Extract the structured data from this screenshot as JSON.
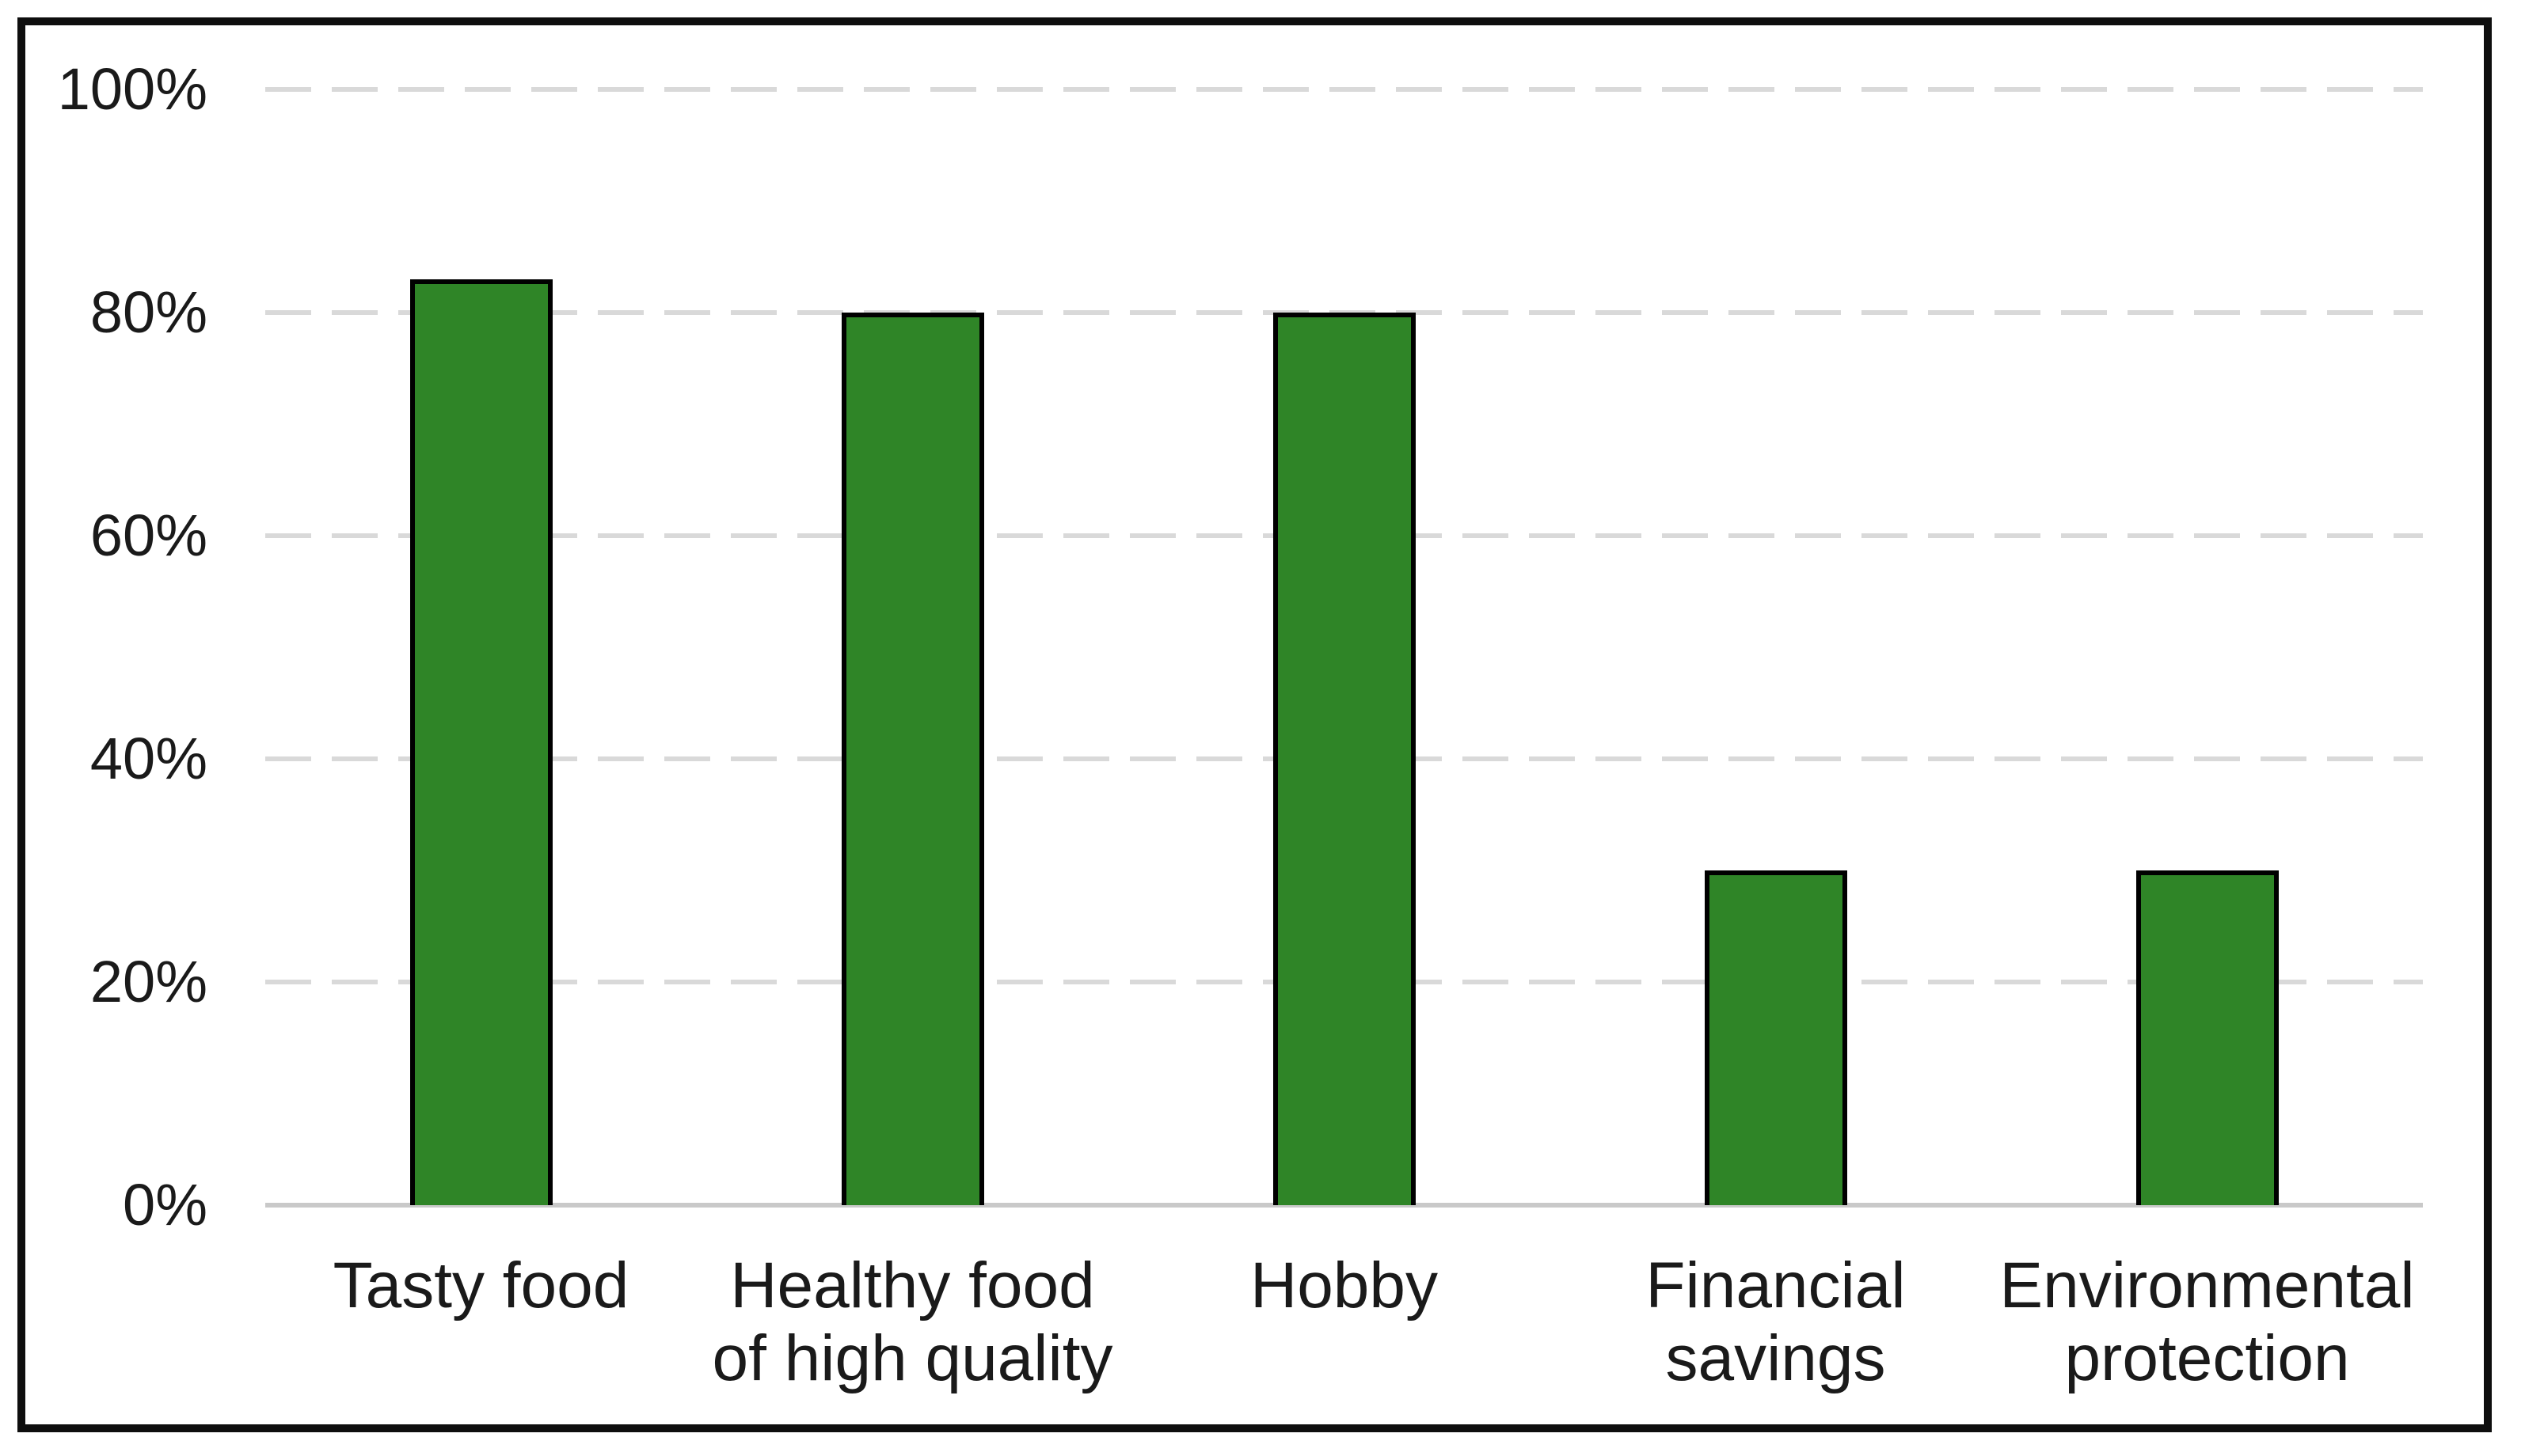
{
  "chart_data": {
    "type": "bar",
    "title": "",
    "categories": [
      "Tasty food",
      "Healthy food\nof high quality",
      "Hobby",
      "Financial\nsavings",
      "Environmental\nprotection"
    ],
    "values": [
      83,
      80,
      80,
      30,
      30
    ],
    "xlabel": "",
    "ylabel": "",
    "ylim": [
      0,
      100
    ],
    "yticks": [
      0,
      20,
      40,
      60,
      80,
      100
    ],
    "ytick_labels": [
      "0%",
      "20%",
      "40%",
      "60%",
      "80%",
      "100%"
    ],
    "grid": "horizontal-dashed",
    "legend": "none",
    "colors": {
      "bar_fill": "#2F8527",
      "bar_border": "#000000",
      "gridline": "#D9D9D9",
      "axis_line": "#C9C9C9",
      "text": "#1A1A1A",
      "frame_border": "#0E0E0E",
      "background": "#FFFFFF"
    }
  }
}
